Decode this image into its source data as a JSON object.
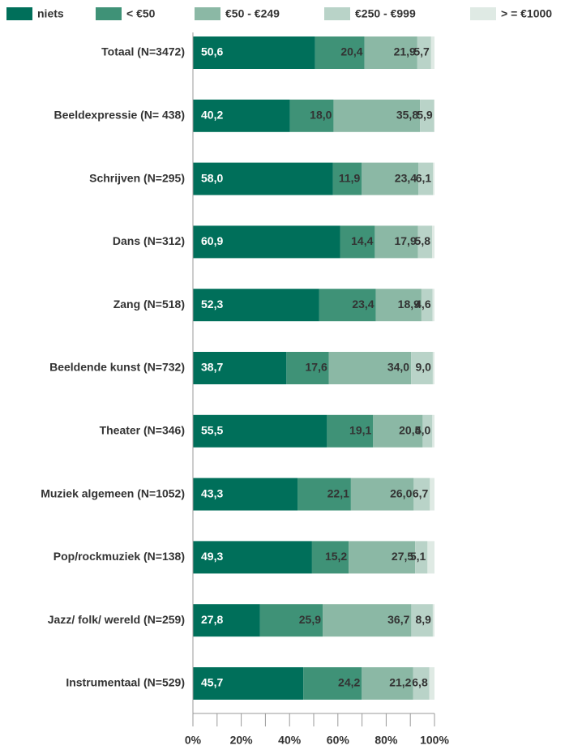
{
  "chart_data": {
    "type": "stacked-barh",
    "categories": [
      "Totaal (N=3472)",
      "Beeldexpressie (N= 438)",
      "Schrijven (N=295)",
      "Dans (N=312)",
      "Zang (N=518)",
      "Beeldende kunst (N=732)",
      "Theater (N=346)",
      "Muziek algemeen (N=1052)",
      "Pop/rockmuziek (N=138)",
      "Jazz/ folk/ wereld (N=259)",
      "Instrumentaal (N=529)"
    ],
    "series": [
      {
        "name": "niets",
        "color": "#006f5a",
        "values": [
          50.6,
          40.2,
          58.0,
          60.9,
          52.3,
          38.7,
          55.5,
          43.3,
          49.3,
          27.8,
          45.7
        ],
        "value_labels": [
          "50,6",
          "40,2",
          "58,0",
          "60,9",
          "52,3",
          "38,7",
          "55,5",
          "43,3",
          "49,3",
          "27,8",
          "45,7"
        ]
      },
      {
        "name": "< €50",
        "color": "#3f9277",
        "values": [
          20.4,
          18.0,
          11.9,
          14.4,
          23.4,
          17.6,
          19.1,
          22.1,
          15.2,
          25.9,
          24.2
        ],
        "value_labels": [
          "20,4",
          "18,0",
          "11,9",
          "14,4",
          "23,4",
          "17,6",
          "19,1",
          "22,1",
          "15,2",
          "25,9",
          "24,2"
        ]
      },
      {
        "name": "€50 - €249",
        "color": "#8bb8a5",
        "values": [
          21.9,
          35.8,
          23.4,
          17.9,
          18.9,
          34.0,
          20.5,
          26.0,
          27.5,
          36.7,
          21.2
        ],
        "value_labels": [
          "21,9",
          "35,8",
          "23,4",
          "17,9",
          "18,9",
          "34,0",
          "20,5",
          "26,0",
          "27,5",
          "36,7",
          "21,2"
        ]
      },
      {
        "name": "€250 - €999",
        "color": "#b9d3c8",
        "values": [
          5.7,
          5.9,
          6.1,
          5.8,
          4.6,
          9.0,
          4.0,
          6.7,
          5.1,
          8.9,
          6.8
        ],
        "value_labels": [
          "5,7",
          "5,9",
          "6,1",
          "5,8",
          "4,6",
          "9,0",
          "4,0",
          "6,7",
          "5,1",
          "8,9",
          "6,8"
        ]
      },
      {
        "name": "> = €1000",
        "color": "#dfeae4",
        "values": [
          1.4,
          0.1,
          0.6,
          1.0,
          0.8,
          0.7,
          0.9,
          1.9,
          2.9,
          0.7,
          2.1
        ]
      }
    ],
    "xlim": [
      0,
      100
    ],
    "xticks": [
      {
        "value": 0,
        "label": "0%"
      },
      {
        "value": 20,
        "label": "20%"
      },
      {
        "value": 40,
        "label": "40%"
      },
      {
        "value": 60,
        "label": "60%"
      },
      {
        "value": 80,
        "label": "80%"
      },
      {
        "value": 100,
        "label": "100%"
      }
    ],
    "xminorticks": [
      10,
      30,
      50,
      70,
      90
    ],
    "legend": "top"
  }
}
